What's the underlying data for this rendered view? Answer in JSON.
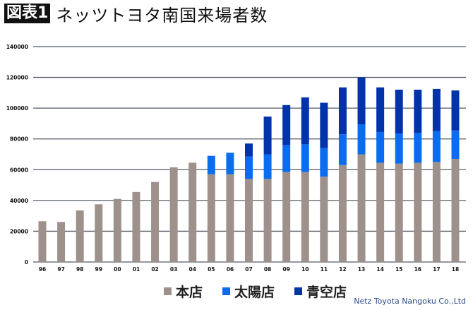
{
  "title": {
    "tag": "図表1",
    "text": "ネッツトヨタ南国来場者数"
  },
  "credit": "Netz Toyota Nangoku Co.,Ltd",
  "colors": {
    "honten": "#9e918b",
    "taiyo": "#0a6cf0",
    "aozora": "#0033aa",
    "grid": "#555a66"
  },
  "chart_data": {
    "type": "bar",
    "stacked": true,
    "categories": [
      "96",
      "97",
      "98",
      "99",
      "00",
      "01",
      "02",
      "03",
      "04",
      "05",
      "06",
      "07",
      "08",
      "09",
      "10",
      "11",
      "12",
      "13",
      "14",
      "15",
      "16",
      "17",
      "18"
    ],
    "series": [
      {
        "name": "本店",
        "values": [
          26500,
          26000,
          33500,
          37500,
          41000,
          45500,
          52000,
          61500,
          64500,
          57000,
          57000,
          54000,
          54000,
          58500,
          58500,
          55500,
          63000,
          70000,
          64500,
          64000,
          64500,
          65000,
          67000
        ]
      },
      {
        "name": "太陽店",
        "values": [
          0,
          0,
          0,
          0,
          0,
          0,
          0,
          0,
          0,
          12000,
          14000,
          14500,
          16000,
          17500,
          18000,
          18500,
          20000,
          19500,
          20000,
          19500,
          19500,
          20000,
          18500
        ]
      },
      {
        "name": "青空店",
        "values": [
          0,
          0,
          0,
          0,
          0,
          0,
          0,
          0,
          0,
          0,
          0,
          8500,
          24500,
          26000,
          30500,
          29500,
          30500,
          30500,
          29000,
          28500,
          28000,
          27500,
          26000
        ]
      }
    ],
    "ylim": [
      0,
      140000
    ],
    "yticks": [
      "0",
      "20000",
      "40000",
      "60000",
      "80000",
      "100000",
      "120000",
      "140000"
    ],
    "grid": true,
    "legend_placement": "bottom"
  }
}
